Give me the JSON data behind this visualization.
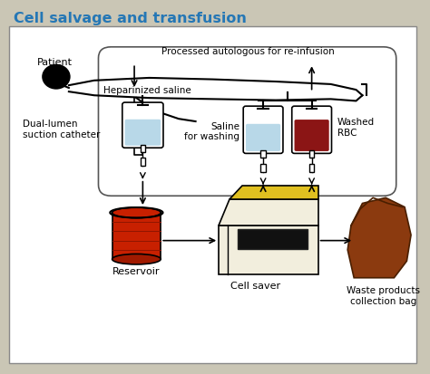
{
  "title": "Cell salvage and transfusion",
  "title_color": "#2577b5",
  "bg_color": "#cac6b5",
  "box_bg": "#ffffff",
  "font_color": "#222222",
  "labels": {
    "patient": "Patient",
    "dual_lumen": "Dual-lumen\nsuction catheter",
    "hep_saline": "Heparinized saline",
    "saline_washing": "Saline\nfor washing",
    "washed_rbc": "Washed\nRBC",
    "reservoir": "Reservoir",
    "cell_saver": "Cell saver",
    "waste_bag": "Waste products\ncollection bag",
    "processed": "Processed autologous for re-infusion"
  }
}
